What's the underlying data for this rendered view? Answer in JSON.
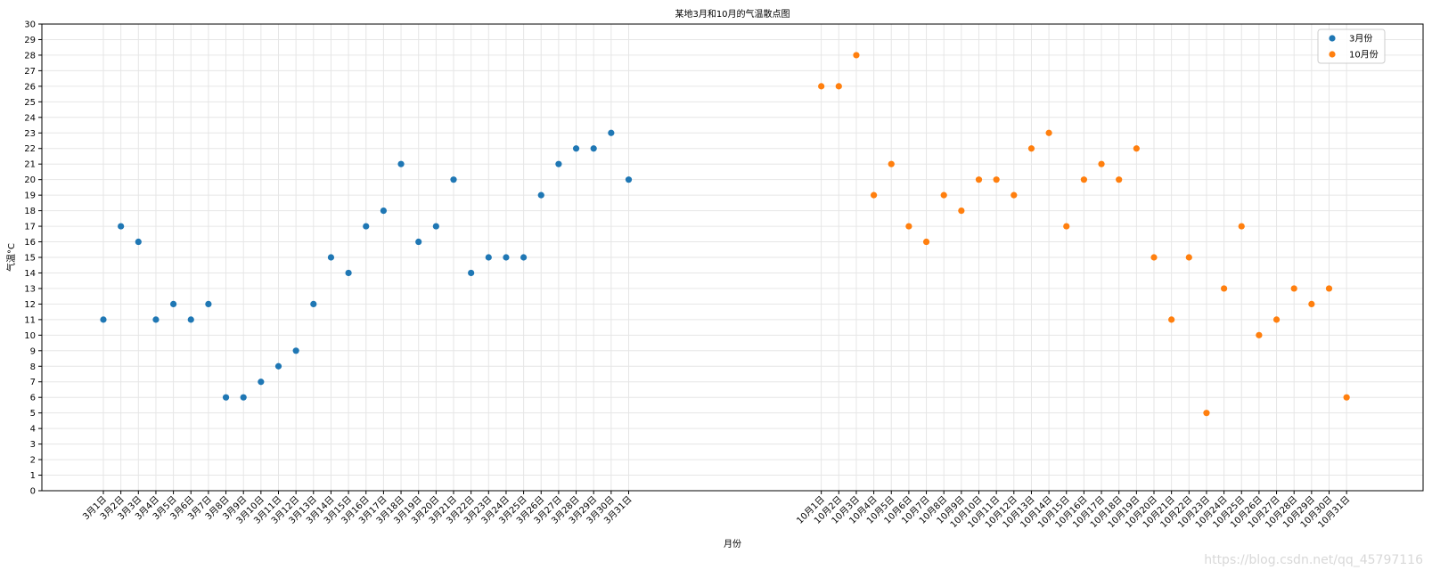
{
  "chart_data": {
    "type": "scatter",
    "title": "某地3月和10月的气温散点图",
    "xlabel": "月份",
    "ylabel": "气温°C",
    "ylim": [
      0,
      30
    ],
    "grid": true,
    "legend_position": "top-right",
    "series": [
      {
        "name": "3月份",
        "color": "#1f77b4",
        "x": [
          "3月1日",
          "3月2日",
          "3月3日",
          "3月4日",
          "3月5日",
          "3月6日",
          "3月7日",
          "3月8日",
          "3月9日",
          "3月10日",
          "3月11日",
          "3月12日",
          "3月13日",
          "3月14日",
          "3月15日",
          "3月16日",
          "3月17日",
          "3月18日",
          "3月19日",
          "3月20日",
          "3月21日",
          "3月22日",
          "3月23日",
          "3月24日",
          "3月25日",
          "3月26日",
          "3月27日",
          "3月28日",
          "3月29日",
          "3月30日",
          "3月31日"
        ],
        "values": [
          11,
          17,
          16,
          11,
          12,
          11,
          12,
          6,
          6,
          7,
          8,
          9,
          12,
          15,
          14,
          17,
          18,
          21,
          16,
          17,
          20,
          14,
          15,
          15,
          15,
          19,
          21,
          22,
          22,
          23,
          20
        ]
      },
      {
        "name": "10月份",
        "color": "#ff7f0e",
        "x": [
          "10月1日",
          "10月2日",
          "10月3日",
          "10月4日",
          "10月5日",
          "10月6日",
          "10月7日",
          "10月8日",
          "10月9日",
          "10月10日",
          "10月11日",
          "10月12日",
          "10月13日",
          "10月14日",
          "10月15日",
          "10月16日",
          "10月17日",
          "10月18日",
          "10月19日",
          "10月20日",
          "10月21日",
          "10月22日",
          "10月23日",
          "10月24日",
          "10月25日",
          "10月26日",
          "10月27日",
          "10月28日",
          "10月29日",
          "10月30日",
          "10月31日"
        ],
        "values": [
          26,
          26,
          28,
          19,
          21,
          17,
          16,
          19,
          18,
          20,
          20,
          19,
          22,
          23,
          17,
          20,
          21,
          20,
          22,
          15,
          11,
          15,
          5,
          13,
          17,
          10,
          11,
          13,
          12,
          13,
          6
        ]
      }
    ]
  },
  "watermark": "https://blog.csdn.net/qq_45797116"
}
